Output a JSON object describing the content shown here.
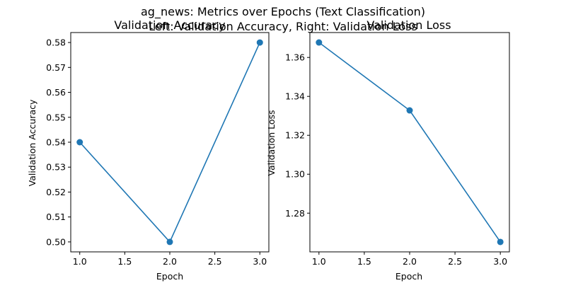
{
  "figure": {
    "title_line1": "ag_news: Metrics over Epochs (Text Classification)",
    "title_line2": "Left: Validation Accuracy, Right: Validation Loss"
  },
  "colors": {
    "series": "#1f77b4",
    "axis": "#000000",
    "background": "#ffffff"
  },
  "chart_data": [
    {
      "type": "line",
      "title": "Validation Accuracy",
      "xlabel": "Epoch",
      "ylabel": "Validation Accuracy",
      "x": [
        1,
        2,
        3
      ],
      "series": [
        {
          "values": [
            0.54,
            0.5,
            0.58
          ]
        }
      ],
      "xlim": [
        0.9,
        3.1
      ],
      "ylim": [
        0.496,
        0.584
      ],
      "xticks": [
        1.0,
        1.5,
        2.0,
        2.5,
        3.0
      ],
      "xtick_labels": [
        "1.0",
        "1.5",
        "2.0",
        "2.5",
        "3.0"
      ],
      "yticks": [
        0.5,
        0.51,
        0.52,
        0.53,
        0.54,
        0.55,
        0.56,
        0.57,
        0.58
      ],
      "ytick_labels": [
        "0.50",
        "0.51",
        "0.52",
        "0.53",
        "0.54",
        "0.55",
        "0.56",
        "0.57",
        "0.58"
      ],
      "grid": false,
      "markers": true
    },
    {
      "type": "line",
      "title": "Validation Loss",
      "xlabel": "Epoch",
      "ylabel": "Validation Loss",
      "x": [
        1,
        2,
        3
      ],
      "series": [
        {
          "values": [
            1.3677,
            1.3328,
            1.2652
          ]
        }
      ],
      "xlim": [
        0.9,
        3.1
      ],
      "ylim": [
        1.2601,
        1.3728
      ],
      "xticks": [
        1.0,
        1.5,
        2.0,
        2.5,
        3.0
      ],
      "xtick_labels": [
        "1.0",
        "1.5",
        "2.0",
        "2.5",
        "3.0"
      ],
      "yticks": [
        1.28,
        1.3,
        1.32,
        1.34,
        1.36
      ],
      "ytick_labels": [
        "1.28",
        "1.30",
        "1.32",
        "1.34",
        "1.36"
      ],
      "grid": false,
      "markers": true
    }
  ]
}
